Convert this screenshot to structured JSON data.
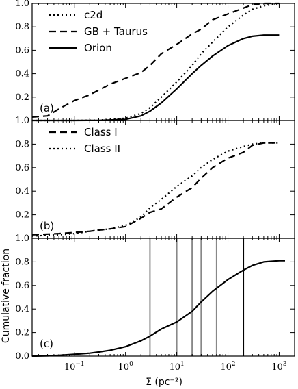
{
  "figure": {
    "xlabel": "Σ (pc⁻²)",
    "ylabel": "Cumulative fraction",
    "x_scale": "log",
    "xlim": [
      0.015,
      2000
    ],
    "x_ticks": [
      {
        "value": 0.1,
        "mant": "10",
        "exp": "−1"
      },
      {
        "value": 1,
        "mant": "10",
        "exp": "0"
      },
      {
        "value": 10,
        "mant": "10",
        "exp": "1"
      },
      {
        "value": 100,
        "mant": "10",
        "exp": "2"
      },
      {
        "value": 1000,
        "mant": "10",
        "exp": "3"
      }
    ]
  },
  "chart_data": [
    {
      "type": "line",
      "panel_label": "(a)",
      "ylim": [
        0.0,
        1.0
      ],
      "y_ticks": [
        "1.0",
        "0.8",
        "0.6",
        "0.4",
        "0.2"
      ],
      "legend_position": "top-left",
      "series": [
        {
          "name": "c2d",
          "style": "dotted",
          "x": [
            0.015,
            0.1,
            0.3,
            1,
            2,
            3,
            5,
            10,
            20,
            30,
            50,
            100,
            200,
            300,
            500,
            1000
          ],
          "y": [
            0.0,
            0.0,
            0.003,
            0.02,
            0.06,
            0.11,
            0.2,
            0.33,
            0.47,
            0.57,
            0.67,
            0.8,
            0.9,
            0.95,
            0.98,
            1.0
          ]
        },
        {
          "name": "GB + Taurus",
          "style": "dashed",
          "x": [
            0.015,
            0.03,
            0.05,
            0.1,
            0.2,
            0.3,
            0.5,
            1,
            2,
            3,
            5,
            10,
            20,
            30,
            50,
            100,
            200,
            300,
            500,
            1000
          ],
          "y": [
            0.03,
            0.04,
            0.1,
            0.17,
            0.22,
            0.26,
            0.31,
            0.36,
            0.41,
            0.47,
            0.57,
            0.65,
            0.74,
            0.78,
            0.86,
            0.91,
            0.96,
            0.99,
            1.0,
            1.0
          ]
        },
        {
          "name": "Orion",
          "style": "solid",
          "x": [
            0.015,
            0.1,
            0.3,
            1,
            2,
            3,
            5,
            10,
            20,
            30,
            50,
            100,
            200,
            300,
            500,
            1000
          ],
          "y": [
            0.0,
            0.0,
            0.001,
            0.01,
            0.04,
            0.08,
            0.15,
            0.27,
            0.4,
            0.47,
            0.55,
            0.64,
            0.7,
            0.72,
            0.73,
            0.73
          ]
        }
      ]
    },
    {
      "type": "line",
      "panel_label": "(b)",
      "ylim": [
        0.0,
        1.0
      ],
      "y_ticks": [
        "1.0",
        "0.8",
        "0.6",
        "0.4",
        "0.2"
      ],
      "legend_position": "top-left",
      "series": [
        {
          "name": "Class I",
          "style": "dashed",
          "x": [
            0.015,
            0.05,
            0.1,
            0.2,
            0.3,
            0.5,
            1,
            2,
            3,
            5,
            10,
            20,
            30,
            50,
            100,
            200,
            300,
            500,
            1000
          ],
          "y": [
            0.03,
            0.04,
            0.05,
            0.06,
            0.07,
            0.08,
            0.1,
            0.17,
            0.22,
            0.25,
            0.35,
            0.43,
            0.51,
            0.6,
            0.68,
            0.73,
            0.79,
            0.81,
            0.81
          ]
        },
        {
          "name": "Class II",
          "style": "dotted",
          "x": [
            0.015,
            0.05,
            0.1,
            0.2,
            0.3,
            0.5,
            1,
            2,
            3,
            5,
            10,
            20,
            30,
            50,
            100,
            200,
            300,
            500,
            1000
          ],
          "y": [
            0.02,
            0.03,
            0.04,
            0.06,
            0.07,
            0.08,
            0.11,
            0.18,
            0.26,
            0.33,
            0.44,
            0.53,
            0.6,
            0.67,
            0.74,
            0.78,
            0.8,
            0.81,
            0.81
          ]
        }
      ]
    },
    {
      "type": "line",
      "panel_label": "(c)",
      "ylim": [
        0.0,
        1.0
      ],
      "y_ticks": [
        "1.0",
        "0.8",
        "0.6",
        "0.4",
        "0.2",
        "0.0"
      ],
      "series": [
        {
          "name": "",
          "style": "solid",
          "x": [
            0.015,
            0.03,
            0.05,
            0.1,
            0.2,
            0.3,
            0.5,
            1,
            2,
            3,
            5,
            10,
            20,
            30,
            50,
            100,
            200,
            300,
            500,
            1000,
            1300
          ],
          "y": [
            0.0,
            0.003,
            0.007,
            0.015,
            0.025,
            0.035,
            0.05,
            0.08,
            0.13,
            0.17,
            0.23,
            0.29,
            0.38,
            0.46,
            0.55,
            0.65,
            0.73,
            0.77,
            0.8,
            0.81,
            0.81
          ]
        }
      ],
      "vertical_lines": [
        {
          "x": 3,
          "color": "#888888"
        },
        {
          "x": 10,
          "color": "#888888"
        },
        {
          "x": 20,
          "color": "#888888"
        },
        {
          "x": 30,
          "color": "#888888"
        },
        {
          "x": 60,
          "color": "#888888"
        },
        {
          "x": 200,
          "color": "#000000"
        }
      ]
    }
  ]
}
